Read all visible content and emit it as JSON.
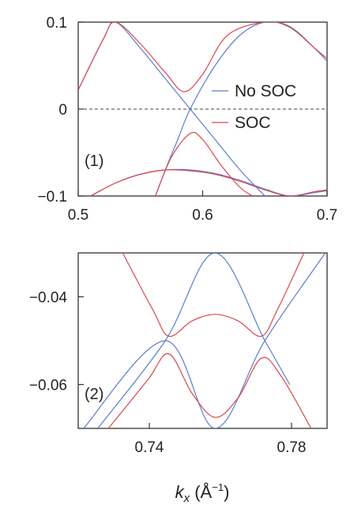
{
  "colors": {
    "no_soc": "#5b7fc9",
    "soc": "#d9474f",
    "axis": "#333333"
  },
  "x_axis_label": {
    "main": "k",
    "sub": "x",
    "unit_open": " (Å",
    "unit_sup": "−1",
    "unit_close": ")"
  },
  "chart_data": [
    {
      "type": "line",
      "panel_label": "(1)",
      "xlim": [
        0.5,
        0.7
      ],
      "ylim": [
        -0.1,
        0.1
      ],
      "xticks": [
        0.5,
        0.6,
        0.7
      ],
      "xtick_labels": [
        "0.5",
        "0.6",
        "0.7"
      ],
      "yticks": [
        -0.1,
        0,
        0.1
      ],
      "ytick_labels": [
        "−0.1",
        "0",
        "0.1"
      ],
      "reference_line": {
        "y": 0,
        "style": "dashed"
      },
      "legend": {
        "position": "top-right",
        "entries": [
          "No SOC",
          "SOC"
        ]
      },
      "series": [
        {
          "name": "No SOC",
          "color_key": "no_soc",
          "x": [
            0.5,
            0.52,
            0.53,
            0.55,
            0.57,
            0.59,
            0.61,
            0.63,
            0.65,
            0.67,
            0.69,
            0.7
          ],
          "y": [
            0.022,
            0.08,
            0.1,
            0.07,
            0.035,
            0.0,
            -0.035,
            -0.07,
            -0.1,
            null,
            null,
            null
          ]
        },
        {
          "name": "No SOC",
          "color_key": "no_soc",
          "x": [
            0.51,
            0.53,
            0.55,
            0.57,
            0.59,
            0.61,
            0.63,
            0.65,
            0.67,
            0.69,
            0.7
          ],
          "y": [
            -0.1,
            -0.085,
            -0.075,
            -0.07,
            -0.07,
            -0.074,
            -0.082,
            -0.092,
            -0.1,
            -0.096,
            -0.094
          ]
        },
        {
          "name": "No SOC",
          "color_key": "no_soc",
          "x": [
            0.562,
            0.57,
            0.58,
            0.59,
            0.61,
            0.63,
            0.65,
            0.67,
            0.69,
            0.7
          ],
          "y": [
            -0.1,
            -0.07,
            -0.035,
            0.0,
            0.05,
            0.085,
            0.1,
            0.095,
            0.07,
            0.055
          ]
        },
        {
          "name": "SOC",
          "color_key": "soc",
          "x": [
            0.5,
            0.52,
            0.53,
            0.55,
            0.57,
            0.585,
            0.6,
            0.62,
            0.65,
            0.67,
            0.69,
            0.7
          ],
          "y": [
            0.022,
            0.08,
            0.1,
            0.075,
            0.042,
            0.02,
            0.04,
            0.085,
            0.1,
            0.094,
            0.07,
            0.058
          ]
        },
        {
          "name": "SOC",
          "color_key": "soc",
          "x": [
            0.562,
            0.575,
            0.59,
            0.6,
            0.615,
            0.63,
            0.64
          ],
          "y": [
            -0.1,
            -0.055,
            -0.028,
            -0.035,
            -0.065,
            -0.09,
            -0.1
          ]
        },
        {
          "name": "SOC",
          "color_key": "soc",
          "x": [
            0.51,
            0.53,
            0.55,
            0.57,
            0.59,
            0.61,
            0.63,
            0.65,
            0.67,
            0.69,
            0.7
          ],
          "y": [
            -0.1,
            -0.085,
            -0.075,
            -0.07,
            -0.071,
            -0.075,
            -0.083,
            -0.093,
            -0.1,
            -0.095,
            -0.093
          ]
        }
      ]
    },
    {
      "type": "line",
      "panel_label": "(2)",
      "xlim": [
        0.72,
        0.79
      ],
      "ylim": [
        -0.07,
        -0.03
      ],
      "xticks": [
        0.74,
        0.78
      ],
      "xtick_labels": [
        "0.74",
        "0.78"
      ],
      "yticks": [
        -0.04,
        -0.06
      ],
      "ytick_labels": [
        "−0.04",
        "−0.06"
      ],
      "series": [
        {
          "name": "No SOC",
          "color_key": "no_soc",
          "x": [
            0.7255,
            0.7445,
            0.7585,
            0.7725,
            0.7795
          ],
          "y": [
            -0.07,
            -0.05,
            -0.03,
            -0.05,
            -0.06
          ]
        },
        {
          "name": "No SOC",
          "color_key": "no_soc",
          "x": [
            0.7215,
            0.7445,
            0.7585,
            0.7725,
            0.7895
          ],
          "y": [
            -0.07,
            -0.05,
            -0.07,
            -0.05,
            -0.03
          ]
        },
        {
          "name": "SOC",
          "color_key": "soc",
          "x": [
            0.7325,
            0.741,
            0.7455,
            0.752,
            0.7585,
            0.765,
            0.7715,
            0.776,
            0.7835
          ],
          "y": [
            -0.03,
            -0.043,
            -0.049,
            -0.0455,
            -0.044,
            -0.0455,
            -0.049,
            -0.043,
            -0.03
          ]
        },
        {
          "name": "SOC",
          "color_key": "soc",
          "x": [
            0.7285,
            0.7395,
            0.7455,
            0.752,
            0.7585,
            0.765,
            0.7715,
            0.777,
            0.7855
          ],
          "y": [
            -0.07,
            -0.059,
            -0.053,
            -0.062,
            -0.0675,
            -0.063,
            -0.054,
            -0.058,
            -0.07
          ]
        }
      ]
    }
  ]
}
